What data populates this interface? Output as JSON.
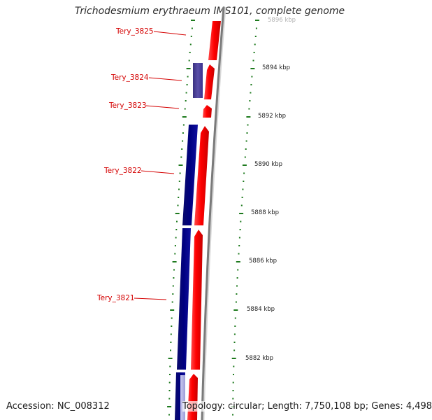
{
  "title": "Trichodesmium erythraeum IMS101, complete genome",
  "accession": "Accession: NC_008312",
  "topology": "Topology: circular; Length: 7,750,108 bp; Genes: 4,498",
  "colors": {
    "forward_strand": "#ff0000",
    "reverse_strand": "#000080",
    "reverse_strand_light": "#4a3f90",
    "backbone": "#7a7a7a",
    "tick": "#1e7a1e",
    "gene_label": "#d40000"
  },
  "gene_labels": [
    "Tery_3825",
    "Tery_3824",
    "Tery_3823",
    "Tery_3822",
    "Tery_3821"
  ],
  "scale_labels": [
    "5896 kbp",
    "5894 kbp",
    "5892 kbp",
    "5890 kbp",
    "5888 kbp",
    "5886 kbp",
    "5884 kbp",
    "5882 kbp"
  ]
}
